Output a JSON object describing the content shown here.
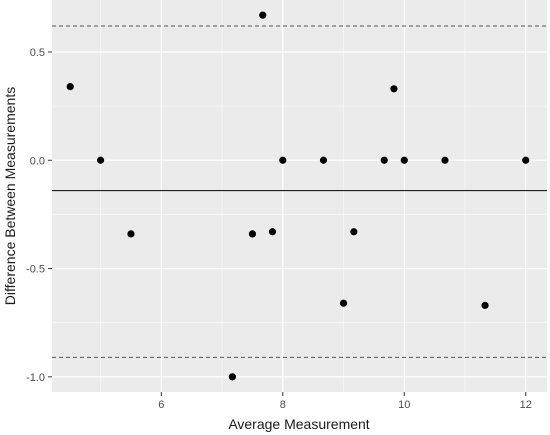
{
  "chart_data": {
    "type": "scatter",
    "title": "",
    "xlabel": "Average Measurement",
    "ylabel": "Difference Between Measurements",
    "xlim": [
      4.2,
      12.35
    ],
    "ylim": [
      -1.07,
      0.74
    ],
    "x_ticks": [
      6,
      8,
      10,
      12
    ],
    "y_ticks": [
      -1.0,
      -0.5,
      0.0,
      0.5
    ],
    "x_tick_labels": [
      "6",
      "8",
      "10",
      "12"
    ],
    "y_tick_labels": [
      "-1.0",
      "-0.5",
      "0.0",
      "0.5"
    ],
    "points": [
      {
        "x": 4.5,
        "y": 0.34
      },
      {
        "x": 5.0,
        "y": 0.0
      },
      {
        "x": 5.5,
        "y": -0.34
      },
      {
        "x": 7.17,
        "y": -1.0
      },
      {
        "x": 7.5,
        "y": -0.34
      },
      {
        "x": 7.67,
        "y": 0.67
      },
      {
        "x": 7.83,
        "y": -0.33
      },
      {
        "x": 8.0,
        "y": 0.0
      },
      {
        "x": 8.67,
        "y": 0.0
      },
      {
        "x": 9.0,
        "y": -0.66
      },
      {
        "x": 9.17,
        "y": -0.33
      },
      {
        "x": 9.67,
        "y": 0.0
      },
      {
        "x": 9.83,
        "y": 0.33
      },
      {
        "x": 10.0,
        "y": 0.0
      },
      {
        "x": 10.67,
        "y": 0.0
      },
      {
        "x": 11.33,
        "y": -0.67
      },
      {
        "x": 12.0,
        "y": 0.0
      }
    ],
    "mean_line": -0.14,
    "limits_of_agreement": [
      0.62,
      -0.91
    ],
    "grid": true,
    "colors": {
      "panel": "#ebebeb",
      "grid_major": "#ffffff",
      "point": "#000000",
      "reference_line": "#000000",
      "limit_line": "#555555"
    }
  }
}
